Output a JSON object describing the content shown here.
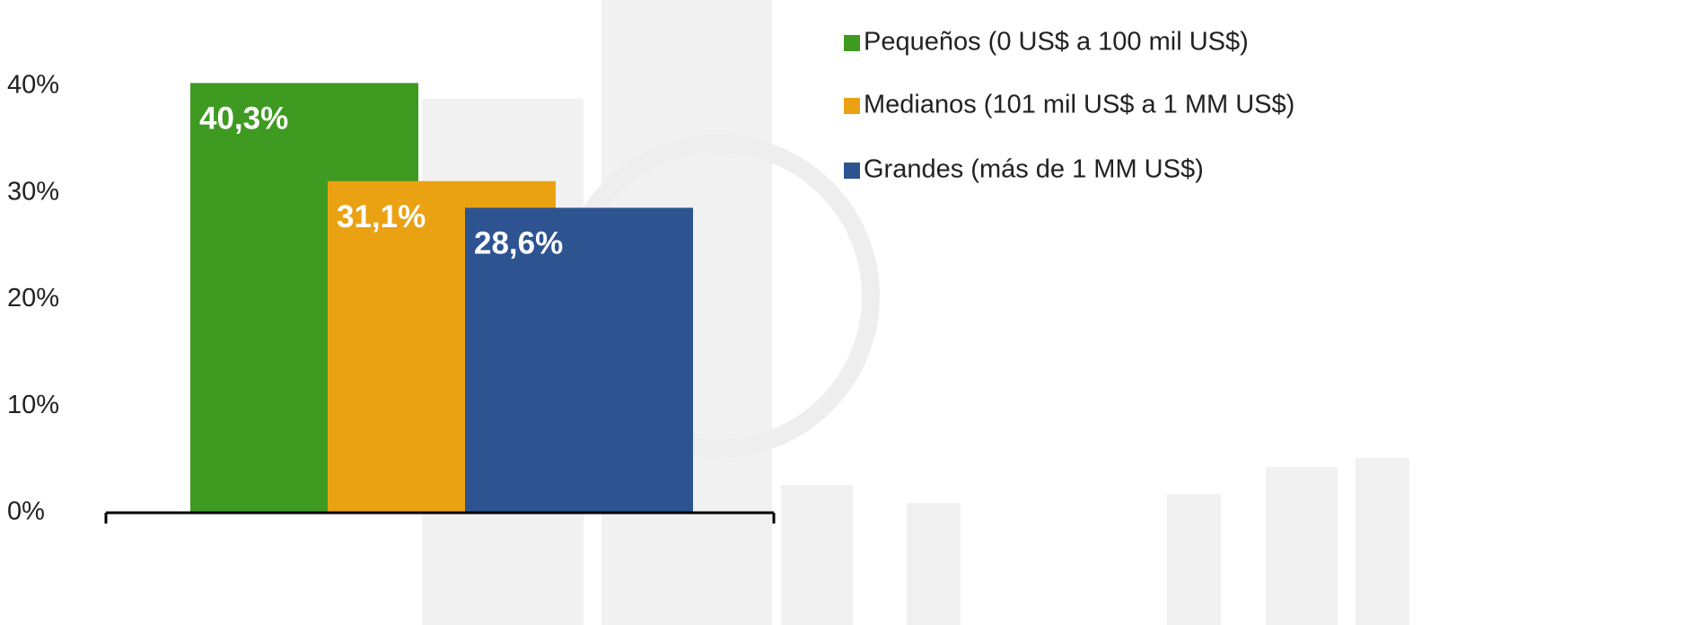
{
  "chart_data": {
    "type": "bar",
    "categories": [
      null
    ],
    "series": [
      {
        "name": "Pequeños (0 US$ a 100 mil US$)",
        "color": "#3f9a21",
        "values": [
          40.3
        ],
        "value_labels": [
          "40,3%"
        ]
      },
      {
        "name": "Medianos (101 mil US$ a 1 MM US$)",
        "color": "#eaa213",
        "values": [
          31.1
        ],
        "value_labels": [
          "31,1%"
        ]
      },
      {
        "name": "Grandes (más de 1 MM US$)",
        "color": "#2e5391",
        "values": [
          28.6
        ],
        "value_labels": [
          "28,6%"
        ]
      }
    ],
    "ylim": [
      0,
      40
    ],
    "yticks": [
      {
        "value": 0,
        "label": "0%"
      },
      {
        "value": 10,
        "label": "10%"
      },
      {
        "value": 20,
        "label": "20%"
      },
      {
        "value": 30,
        "label": "30%"
      },
      {
        "value": 40,
        "label": "40%"
      }
    ],
    "grid": false,
    "legend": "top-right"
  }
}
